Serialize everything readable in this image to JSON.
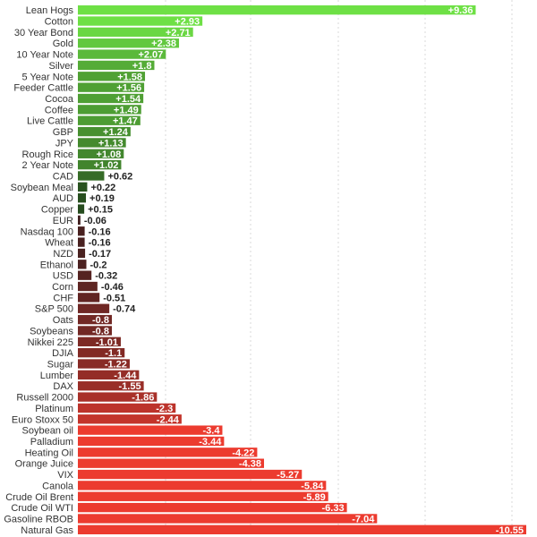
{
  "chart_data": {
    "type": "bar",
    "orientation": "horizontal",
    "title": "",
    "xlabel": "",
    "ylabel": "",
    "xlim": [
      -10.55,
      9.36
    ],
    "grid": "vertical dashed",
    "legend": "none",
    "categories": [
      "Lean Hogs",
      "Cotton",
      "30 Year Bond",
      "Gold",
      "10 Year Note",
      "Silver",
      "5 Year Note",
      "Feeder Cattle",
      "Cocoa",
      "Coffee",
      "Live Cattle",
      "GBP",
      "JPY",
      "Rough Rice",
      "2 Year Note",
      "CAD",
      "Soybean Meal",
      "AUD",
      "Copper",
      "EUR",
      "Nasdaq 100",
      "Wheat",
      "NZD",
      "Ethanol",
      "USD",
      "Corn",
      "CHF",
      "S&P 500",
      "Oats",
      "Soybeans",
      "Nikkei 225",
      "DJIA",
      "Sugar",
      "Lumber",
      "DAX",
      "Russell 2000",
      "Platinum",
      "Euro Stoxx 50",
      "Soybean oil",
      "Palladium",
      "Heating Oil",
      "Orange Juice",
      "VIX",
      "Canola",
      "Crude Oil Brent",
      "Crude Oil WTI",
      "Gasoline RBOB",
      "Natural Gas"
    ],
    "values": [
      9.36,
      2.93,
      2.71,
      2.38,
      2.07,
      1.8,
      1.58,
      1.56,
      1.54,
      1.49,
      1.47,
      1.24,
      1.13,
      1.08,
      1.02,
      0.62,
      0.22,
      0.19,
      0.15,
      -0.06,
      -0.16,
      -0.16,
      -0.17,
      -0.2,
      -0.32,
      -0.46,
      -0.51,
      -0.74,
      -0.8,
      -0.8,
      -1.01,
      -1.1,
      -1.22,
      -1.44,
      -1.55,
      -1.86,
      -2.3,
      -2.44,
      -3.4,
      -3.44,
      -4.22,
      -4.38,
      -5.27,
      -5.84,
      -5.89,
      -6.33,
      -7.04,
      -10.55
    ],
    "value_labels": [
      "+9.36",
      "+2.93",
      "+2.71",
      "+2.38",
      "+2.07",
      "+1.8",
      "+1.58",
      "+1.56",
      "+1.54",
      "+1.49",
      "+1.47",
      "+1.24",
      "+1.13",
      "+1.08",
      "+1.02",
      "+0.62",
      "+0.22",
      "+0.19",
      "+0.15",
      "-0.06",
      "-0.16",
      "-0.16",
      "-0.17",
      "-0.2",
      "-0.32",
      "-0.46",
      "-0.51",
      "-0.74",
      "-0.8",
      "-0.8",
      "-1.01",
      "-1.1",
      "-1.22",
      "-1.44",
      "-1.55",
      "-1.86",
      "-2.3",
      "-2.44",
      "-3.4",
      "-3.44",
      "-4.22",
      "-4.38",
      "-5.27",
      "-5.84",
      "-5.89",
      "-6.33",
      "-7.04",
      "-10.55"
    ],
    "colors": {
      "positive_strong": "#6ee045",
      "positive_weak": "#1f3d1a",
      "negative_weak": "#3a1f1f",
      "negative_strong": "#ec3b2f",
      "label_on_bar": "#ffffff",
      "label_outside": "#222222",
      "grid": "#d9d9d9"
    }
  }
}
